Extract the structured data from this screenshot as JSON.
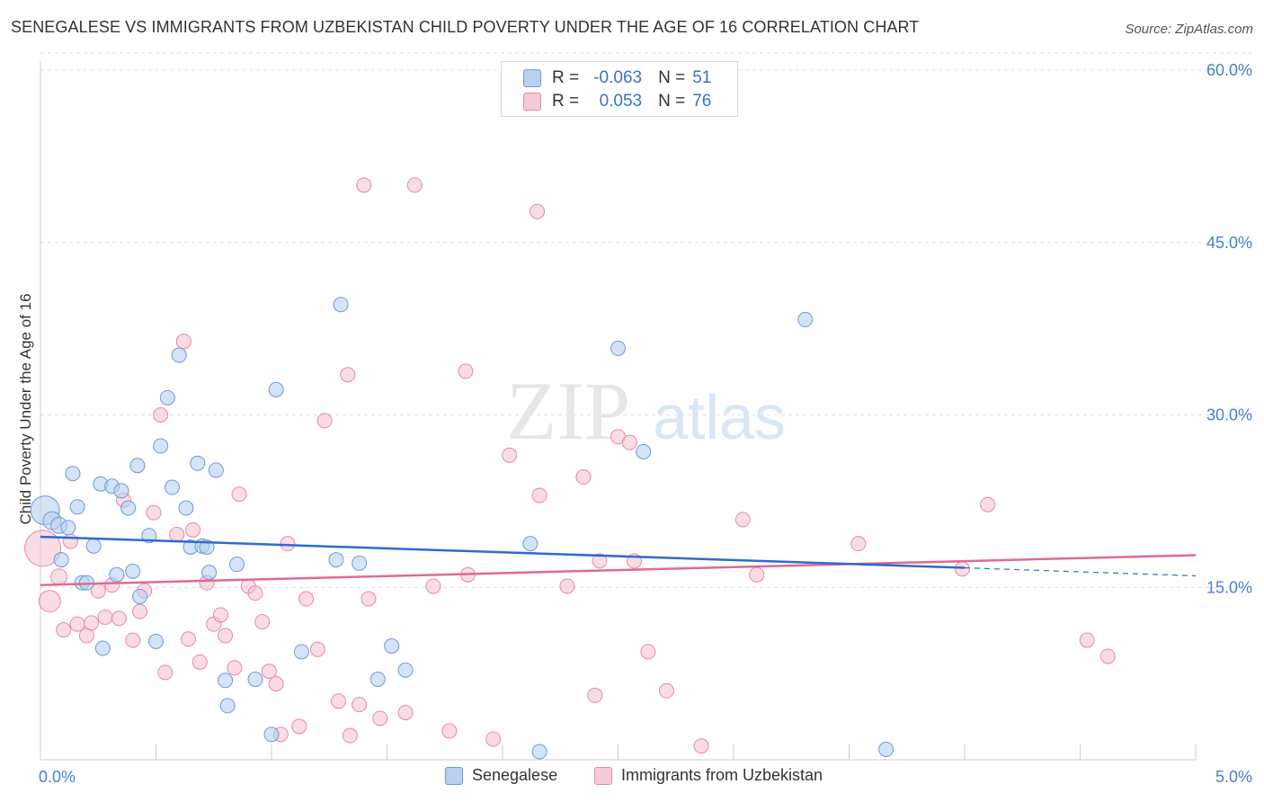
{
  "title": "SENEGALESE VS IMMIGRANTS FROM UZBEKISTAN CHILD POVERTY UNDER THE AGE OF 16 CORRELATION CHART",
  "source": "Source: ZipAtlas.com",
  "watermark": {
    "zip": "ZIP",
    "atlas": "atlas"
  },
  "colors": {
    "blue_fill": "#b8d0f0",
    "blue_stroke": "#6d9bd8",
    "blue_line": "#2e6bd0",
    "pink_fill": "#f6bfd0",
    "pink_stroke": "#e58aa8",
    "pink_line": "#e06a94",
    "tick_label": "#4a7fcf",
    "grid": "#dddddd"
  },
  "stats": {
    "rows": [
      {
        "r_label": "R =",
        "r_value": "-0.063",
        "n_label": "N =",
        "n_value": "51"
      },
      {
        "r_label": "R =",
        "r_value": "0.053",
        "n_label": "N =",
        "n_value": "76"
      }
    ]
  },
  "legend": {
    "senegalese": "Senegalese",
    "uzbekistan": "Immigrants from Uzbekistan"
  },
  "chart_data": {
    "type": "scatter",
    "title": "SENEGALESE VS IMMIGRANTS FROM UZBEKISTAN CHILD POVERTY UNDER THE AGE OF 16 CORRELATION CHART",
    "xlabel": "",
    "ylabel": "Child Poverty Under the Age of 16",
    "xlim": [
      0,
      5
    ],
    "ylim": [
      0,
      60
    ],
    "x_tick_labels": [
      "0.0%",
      "5.0%"
    ],
    "y_ticks": [
      15,
      30,
      45,
      60
    ],
    "y_tick_labels": [
      "15.0%",
      "30.0%",
      "45.0%",
      "60.0%"
    ],
    "grid": true,
    "legend_position": "bottom",
    "series": [
      {
        "name": "Senegalese",
        "r": -0.063,
        "n": 51,
        "trend": {
          "x0": 0.0,
          "y0": 19.4,
          "x1": 4.0,
          "y1": 16.7,
          "dashed_to_x": 5.0,
          "dashed_to_y": 16.0
        },
        "points": [
          [
            0.02,
            21.7,
            16
          ],
          [
            0.05,
            20.8,
            10
          ],
          [
            0.08,
            20.4,
            9
          ],
          [
            0.12,
            20.2,
            8
          ],
          [
            0.09,
            17.4,
            8
          ],
          [
            0.14,
            24.9,
            8
          ],
          [
            0.16,
            22.0,
            8
          ],
          [
            0.18,
            15.4,
            8
          ],
          [
            0.2,
            15.4,
            8
          ],
          [
            0.23,
            18.6,
            8
          ],
          [
            0.27,
            9.7,
            8
          ],
          [
            0.26,
            24.0,
            8
          ],
          [
            0.31,
            23.8,
            8
          ],
          [
            0.33,
            16.1,
            8
          ],
          [
            0.35,
            23.4,
            8
          ],
          [
            0.38,
            21.9,
            8
          ],
          [
            0.4,
            16.4,
            8
          ],
          [
            0.43,
            14.2,
            8
          ],
          [
            0.42,
            25.6,
            8
          ],
          [
            0.47,
            19.5,
            8
          ],
          [
            0.5,
            10.3,
            8
          ],
          [
            0.52,
            27.3,
            8
          ],
          [
            0.55,
            31.5,
            8
          ],
          [
            0.57,
            23.7,
            8
          ],
          [
            0.6,
            35.2,
            8
          ],
          [
            0.63,
            21.9,
            8
          ],
          [
            0.65,
            18.5,
            8
          ],
          [
            0.68,
            25.8,
            8
          ],
          [
            0.7,
            18.6,
            8
          ],
          [
            0.72,
            18.5,
            8
          ],
          [
            0.73,
            16.3,
            8
          ],
          [
            0.76,
            25.2,
            8
          ],
          [
            0.8,
            6.9,
            8
          ],
          [
            0.81,
            4.7,
            8
          ],
          [
            0.85,
            17.0,
            8
          ],
          [
            0.93,
            7.0,
            8
          ],
          [
            1.0,
            2.2,
            8
          ],
          [
            1.02,
            32.2,
            8
          ],
          [
            1.13,
            9.4,
            8
          ],
          [
            1.28,
            17.4,
            8
          ],
          [
            1.3,
            39.6,
            8
          ],
          [
            1.38,
            17.1,
            8
          ],
          [
            1.46,
            7.0,
            8
          ],
          [
            1.52,
            9.9,
            8
          ],
          [
            1.58,
            7.8,
            8
          ],
          [
            2.12,
            18.8,
            8
          ],
          [
            2.16,
            0.7,
            8
          ],
          [
            2.5,
            35.8,
            8
          ],
          [
            2.61,
            26.8,
            8
          ],
          [
            3.31,
            38.3,
            8
          ],
          [
            3.66,
            0.9,
            8
          ]
        ]
      },
      {
        "name": "Immigrants from Uzbekistan",
        "r": 0.053,
        "n": 76,
        "trend": {
          "x0": 0.0,
          "y0": 15.2,
          "x1": 5.0,
          "y1": 17.8
        },
        "points": [
          [
            0.01,
            18.4,
            20
          ],
          [
            0.04,
            13.8,
            12
          ],
          [
            0.08,
            15.9,
            9
          ],
          [
            0.1,
            11.3,
            8
          ],
          [
            0.13,
            19.0,
            8
          ],
          [
            0.16,
            11.8,
            8
          ],
          [
            0.2,
            10.8,
            8
          ],
          [
            0.22,
            11.9,
            8
          ],
          [
            0.25,
            14.7,
            8
          ],
          [
            0.28,
            12.4,
            8
          ],
          [
            0.31,
            15.2,
            8
          ],
          [
            0.34,
            12.3,
            8
          ],
          [
            0.36,
            22.6,
            8
          ],
          [
            0.4,
            10.4,
            8
          ],
          [
            0.43,
            12.9,
            8
          ],
          [
            0.45,
            14.7,
            8
          ],
          [
            0.49,
            21.5,
            8
          ],
          [
            0.52,
            30.0,
            8
          ],
          [
            0.54,
            7.6,
            8
          ],
          [
            0.59,
            19.6,
            8
          ],
          [
            0.62,
            36.4,
            8
          ],
          [
            0.64,
            10.5,
            8
          ],
          [
            0.66,
            20.0,
            8
          ],
          [
            0.69,
            8.5,
            8
          ],
          [
            0.72,
            15.4,
            8
          ],
          [
            0.75,
            11.8,
            8
          ],
          [
            0.78,
            12.6,
            8
          ],
          [
            0.8,
            10.8,
            8
          ],
          [
            0.84,
            8.0,
            8
          ],
          [
            0.86,
            23.1,
            8
          ],
          [
            0.9,
            15.1,
            8
          ],
          [
            0.93,
            14.5,
            8
          ],
          [
            0.96,
            12.0,
            8
          ],
          [
            0.99,
            7.7,
            8
          ],
          [
            1.02,
            6.6,
            8
          ],
          [
            1.04,
            2.2,
            8
          ],
          [
            1.07,
            18.8,
            8
          ],
          [
            1.12,
            2.9,
            8
          ],
          [
            1.15,
            14.0,
            8
          ],
          [
            1.2,
            9.6,
            8
          ],
          [
            1.23,
            29.5,
            8
          ],
          [
            1.29,
            5.1,
            8
          ],
          [
            1.33,
            33.5,
            8
          ],
          [
            1.34,
            2.1,
            8
          ],
          [
            1.38,
            4.8,
            8
          ],
          [
            1.4,
            50.0,
            8
          ],
          [
            1.42,
            14.0,
            8
          ],
          [
            1.47,
            3.6,
            8
          ],
          [
            1.58,
            4.1,
            8
          ],
          [
            1.62,
            50.0,
            8
          ],
          [
            1.7,
            15.1,
            8
          ],
          [
            1.77,
            2.5,
            8
          ],
          [
            1.84,
            33.8,
            8
          ],
          [
            1.85,
            16.1,
            8
          ],
          [
            1.96,
            1.8,
            8
          ],
          [
            2.03,
            26.5,
            8
          ],
          [
            2.15,
            47.7,
            8
          ],
          [
            2.16,
            23.0,
            8
          ],
          [
            2.28,
            15.1,
            8
          ],
          [
            2.35,
            24.6,
            8
          ],
          [
            2.4,
            5.6,
            8
          ],
          [
            2.42,
            17.3,
            8
          ],
          [
            2.5,
            28.1,
            8
          ],
          [
            2.55,
            27.6,
            8
          ],
          [
            2.57,
            17.3,
            8
          ],
          [
            2.63,
            9.4,
            8
          ],
          [
            2.71,
            6.0,
            8
          ],
          [
            2.86,
            1.2,
            8
          ],
          [
            3.04,
            20.9,
            8
          ],
          [
            3.1,
            16.1,
            8
          ],
          [
            3.54,
            18.8,
            8
          ],
          [
            3.99,
            16.6,
            8
          ],
          [
            4.1,
            22.2,
            8
          ],
          [
            4.53,
            10.4,
            8
          ],
          [
            4.62,
            9.0,
            8
          ],
          [
            3.9,
            13.0,
            0
          ]
        ]
      }
    ]
  }
}
